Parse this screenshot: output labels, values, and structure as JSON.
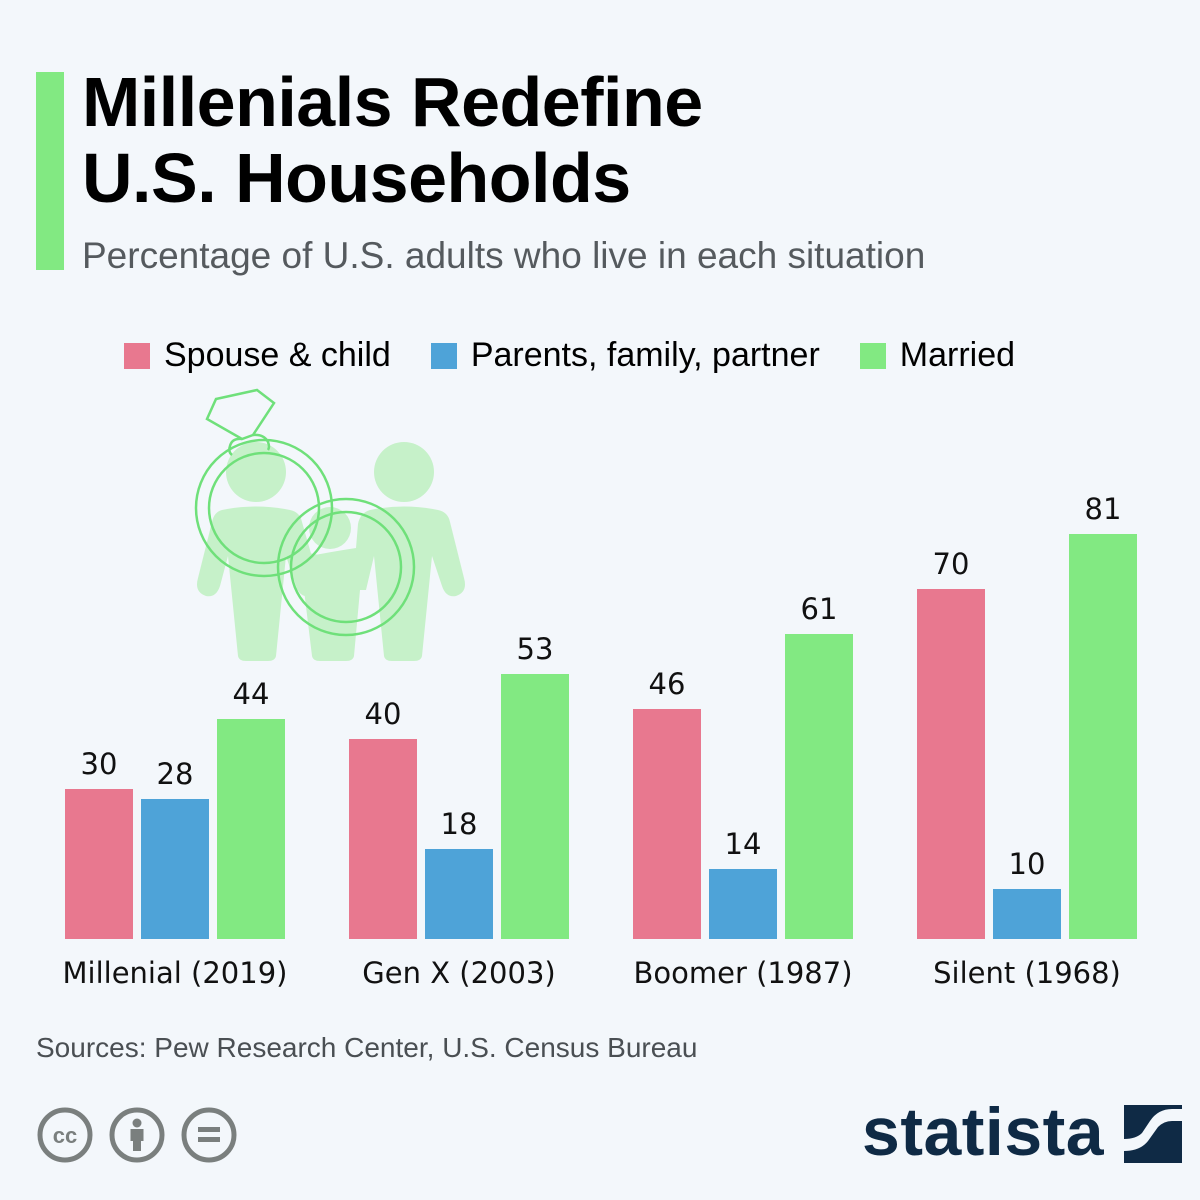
{
  "header": {
    "title_lines": [
      "Millenials Redefine",
      "U.S. Households"
    ],
    "subtitle": "Percentage of U.S. adults who live in each situation"
  },
  "colors": {
    "accent": "#82e982",
    "spouse_child": "#e8788f",
    "parents_family_partner": "#4ea3d8",
    "married": "#82e982",
    "illustration_fill": "#c6f1c9",
    "illustration_stroke": "#6fe07a",
    "brand": "#0f2a45",
    "cc_gray": "#7a7f7e"
  },
  "chart_data": {
    "type": "bar",
    "title": "Millenials Redefine U.S. Households",
    "subtitle": "Percentage of U.S. adults who live in each situation",
    "categories": [
      "Millenial (2019)",
      "Gen X (2003)",
      "Boomer (1987)",
      "Silent (1968)"
    ],
    "series": [
      {
        "name": "Spouse & child",
        "color": "#e8788f",
        "values": [
          30,
          40,
          46,
          70
        ]
      },
      {
        "name": "Parents, family, partner",
        "color": "#4ea3d8",
        "values": [
          28,
          18,
          14,
          10
        ]
      },
      {
        "name": "Married",
        "color": "#82e982",
        "values": [
          44,
          53,
          61,
          81
        ]
      }
    ],
    "xlabel": "",
    "ylabel": "",
    "ylim": [
      0,
      100
    ],
    "grid": false,
    "legend_position": "top-center",
    "data_labels": true,
    "unit": "%"
  },
  "footer": {
    "sources": "Sources: Pew Research Center, U.S. Census Bureau",
    "license_icons": [
      "creative-commons-icon",
      "attribution-icon",
      "no-derivatives-icon"
    ],
    "brand_name": "statista"
  }
}
